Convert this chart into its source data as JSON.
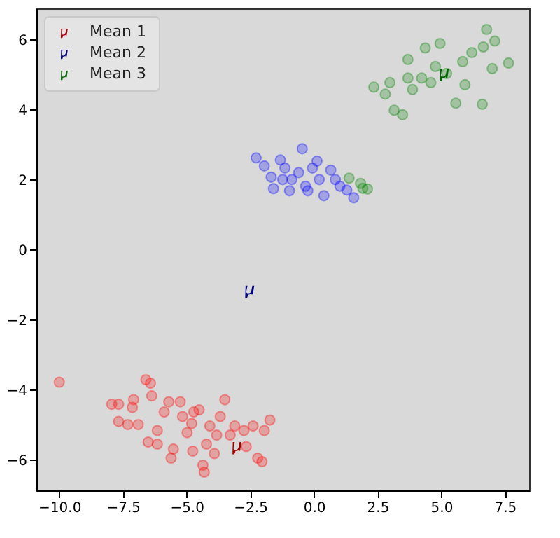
{
  "chart_data": {
    "type": "scatter",
    "xlim": [
      -10.9,
      8.45
    ],
    "ylim": [
      -6.87,
      6.9
    ],
    "xticks": [
      {
        "value": -10,
        "label": "−10.0"
      },
      -7.5,
      {
        "value": -5,
        "label": "−5.0"
      },
      -2.5,
      {
        "value": 0,
        "label": "0.0"
      },
      2.5,
      {
        "value": 5,
        "label": "5.0"
      },
      7.5
    ],
    "yticks": [
      -6,
      -4,
      -2,
      0,
      2,
      4,
      6
    ],
    "grid": false,
    "legend": "top left",
    "series": [
      {
        "color": "#ff0000",
        "marker": "circle",
        "x": [
          -10.0,
          -7.94,
          -7.67,
          -7.08,
          -7.13,
          -7.67,
          -7.31,
          -6.9,
          -6.6,
          -6.42,
          -6.37,
          -6.51,
          -6.15,
          -6.15,
          -5.88,
          -5.7,
          -5.61,
          -5.52,
          -5.25,
          -5.16,
          -4.98,
          -4.8,
          -4.76,
          -4.72,
          -4.51,
          -4.36,
          -4.31,
          -4.22,
          -4.09,
          -3.91,
          -3.82,
          -3.68,
          -3.5,
          -3.29,
          -3.11,
          -2.75,
          -2.66,
          -2.39,
          -2.21,
          -2.04,
          -1.95,
          -1.73
        ],
        "values": [
          -3.78,
          -4.41,
          -4.41,
          -4.28,
          -4.5,
          -4.9,
          -4.99,
          -4.99,
          -3.71,
          -3.81,
          -4.17,
          -5.49,
          -5.55,
          -5.16,
          -4.63,
          -4.34,
          -5.95,
          -5.69,
          -4.34,
          -4.76,
          -5.22,
          -4.96,
          -5.75,
          -4.63,
          -4.57,
          -6.15,
          -6.35,
          -5.55,
          -5.03,
          -5.82,
          -5.29,
          -4.76,
          -4.28,
          -5.29,
          -5.03,
          -5.16,
          -5.62,
          -5.03,
          -5.95,
          -6.05,
          -5.16,
          -4.86
        ]
      },
      {
        "color": "#0000ff",
        "marker": "circle",
        "x": [
          -2.27,
          -1.95,
          -1.32,
          -0.46,
          -1.68,
          -1.59,
          -1.14,
          -0.87,
          -0.6,
          -0.33,
          -0.06,
          0.21,
          0.39,
          0.66,
          0.84,
          1.02,
          1.29,
          1.56,
          -0.96,
          -0.24,
          -1.23,
          0.12
        ],
        "values": [
          2.63,
          2.4,
          2.57,
          2.89,
          2.08,
          1.75,
          2.34,
          2.01,
          2.21,
          1.82,
          2.34,
          2.01,
          1.55,
          2.28,
          2.01,
          1.82,
          1.71,
          1.49,
          1.69,
          1.69,
          2.01,
          2.54
        ]
      },
      {
        "color": "#008000",
        "marker": "circle",
        "x": [
          1.38,
          1.83,
          2.1,
          1.92,
          2.35,
          2.8,
          3.15,
          3.48,
          2.98,
          3.69,
          4.37,
          4.95,
          4.23,
          4.77,
          5.21,
          5.57,
          5.93,
          6.2,
          6.65,
          6.78,
          7.1,
          7.64,
          6.61,
          7.0,
          3.87,
          4.59,
          5.84,
          3.69
        ],
        "values": [
          2.05,
          1.9,
          1.74,
          1.76,
          4.65,
          4.45,
          3.99,
          3.86,
          4.78,
          5.44,
          5.77,
          5.9,
          4.91,
          5.24,
          5.04,
          4.19,
          4.72,
          5.64,
          5.8,
          6.3,
          5.97,
          5.34,
          4.16,
          5.18,
          4.58,
          4.78,
          5.38,
          4.91
        ]
      },
      {
        "name": "Mean 1",
        "color": "#a00000",
        "x": [
          -3.02
        ],
        "values": [
          -5.62
        ]
      },
      {
        "name": "Mean 2",
        "color": "#000080",
        "x": [
          -2.52
        ],
        "values": [
          -1.15
        ]
      },
      {
        "name": "Mean 3",
        "color": "#006400",
        "x": [
          5.12
        ],
        "values": [
          5.04
        ]
      }
    ]
  }
}
